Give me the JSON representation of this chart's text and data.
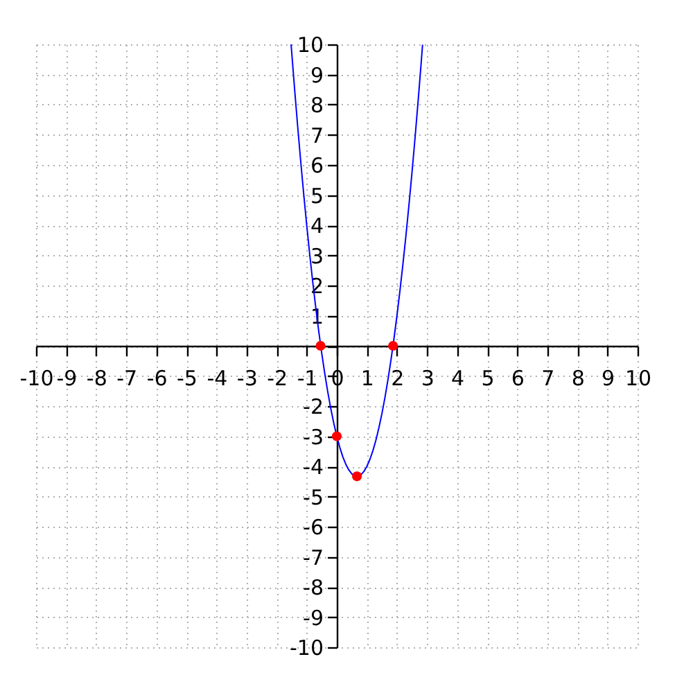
{
  "chart_data": {
    "type": "line",
    "xlim": [
      -10,
      10
    ],
    "ylim": [
      -10,
      10
    ],
    "xticks": [
      -10,
      -9,
      -8,
      -7,
      -6,
      -5,
      -4,
      -3,
      -2,
      -1,
      0,
      1,
      2,
      3,
      4,
      5,
      6,
      7,
      8,
      9,
      10
    ],
    "yticks": [
      -10,
      -9,
      -8,
      -7,
      -6,
      -5,
      -4,
      -3,
      -2,
      {
        "value": -1,
        "label": null
      },
      {
        "value": 0,
        "label": null
      },
      1,
      2,
      3,
      4,
      5,
      6,
      7,
      8,
      9,
      10
    ],
    "grid": true,
    "series": [
      {
        "color": "#0000ff",
        "x": [
          -1.52,
          -1.4,
          -1.3,
          -1.2,
          -1.1,
          -1.0,
          -0.9,
          -0.8,
          -0.7,
          -0.6,
          -0.5,
          -0.4,
          -0.3,
          -0.2,
          -0.1,
          0,
          0.1,
          0.2,
          0.3,
          0.4,
          0.5,
          0.6,
          0.7,
          0.8,
          0.9,
          1.0,
          1.1,
          1.2,
          1.3,
          1.4,
          1.5,
          1.6,
          1.7,
          1.8,
          1.9,
          2.0,
          2.1,
          2.2,
          2.3,
          2.4,
          2.5,
          2.6,
          2.7,
          2.8,
          2.85
        ],
        "values": [
          10,
          8.48,
          7.27,
          6.12,
          5.03,
          4,
          3.03,
          2.12,
          1.27,
          0.48,
          -0.25,
          -0.92,
          -1.53,
          -2.08,
          -2.57,
          -3,
          -3.37,
          -3.68,
          -3.93,
          -4.12,
          -4.25,
          -4.32,
          -4.33,
          -4.28,
          -4.17,
          -4,
          -3.77,
          -3.48,
          -3.13,
          -2.72,
          -2.25,
          -1.72,
          -1.13,
          -0.48,
          0.23,
          1,
          1.83,
          2.72,
          3.67,
          4.68,
          5.75,
          6.88,
          8.07,
          9.32,
          9.97
        ]
      },
      {
        "type": "scatter",
        "color": "#ff0000",
        "marker": "circle",
        "x": [
          -0.54,
          0,
          0.67,
          1.87
        ],
        "values": [
          0,
          -3,
          -4.33,
          0
        ]
      }
    ]
  }
}
